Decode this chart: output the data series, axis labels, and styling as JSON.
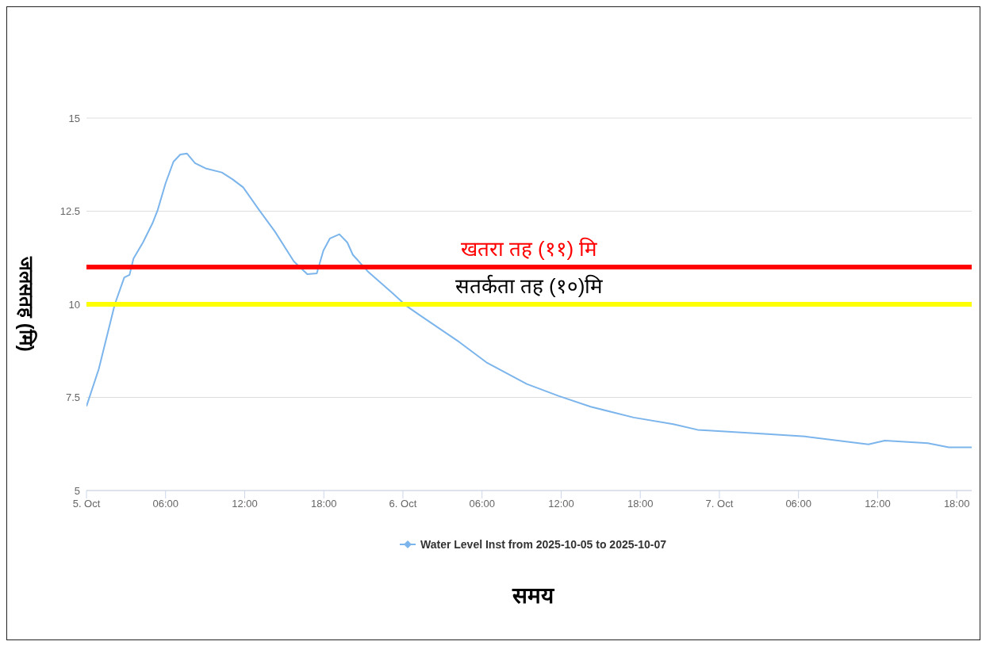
{
  "chart_data": {
    "type": "line",
    "xlabel": "समय",
    "ylabel": "जलसतह (मि)",
    "x": [
      "2025-10-05T00:00",
      "2025-10-05T00:56",
      "2025-10-05T02:09",
      "2025-10-05T02:52",
      "2025-10-05T03:16",
      "2025-10-05T03:34",
      "2025-10-05T04:17",
      "2025-10-05T05:00",
      "2025-10-05T05:24",
      "2025-10-05T06:00",
      "2025-10-05T06:36",
      "2025-10-05T07:07",
      "2025-10-05T07:37",
      "2025-10-05T08:14",
      "2025-10-05T09:02",
      "2025-10-05T10:16",
      "2025-10-05T11:04",
      "2025-10-05T11:53",
      "2025-10-05T13:06",
      "2025-10-05T14:18",
      "2025-10-05T15:44",
      "2025-10-05T16:45",
      "2025-10-05T17:28",
      "2025-10-05T17:58",
      "2025-10-05T18:28",
      "2025-10-05T19:11",
      "2025-10-05T19:47",
      "2025-10-05T20:12",
      "2025-10-05T21:24",
      "2025-10-05T23:14",
      "2025-10-06T00:15",
      "2025-10-06T01:16",
      "2025-10-06T04:18",
      "2025-10-06T06:20",
      "2025-10-06T09:24",
      "2025-10-06T11:48",
      "2025-10-06T14:14",
      "2025-10-06T17:30",
      "2025-10-06T20:30",
      "2025-10-06T22:21",
      "2025-10-06T23:10",
      "2025-10-07T03:24",
      "2025-10-07T06:30",
      "2025-10-07T11:18",
      "2025-10-07T12:33",
      "2025-10-07T15:48",
      "2025-10-07T17:24",
      "2025-10-07T19:08"
    ],
    "series": [
      {
        "name": "Water Level Inst from 2025-10-05 to 2025-10-07",
        "color": "#7cb5ec",
        "values": [
          7.26,
          8.26,
          10.0,
          10.72,
          10.79,
          11.23,
          11.66,
          12.17,
          12.53,
          13.25,
          13.83,
          14.02,
          14.05,
          13.79,
          13.65,
          13.54,
          13.36,
          13.14,
          12.53,
          11.95,
          11.15,
          10.81,
          10.83,
          11.44,
          11.77,
          11.88,
          11.66,
          11.33,
          10.86,
          10.29,
          9.96,
          9.71,
          8.98,
          8.44,
          7.86,
          7.54,
          7.25,
          6.96,
          6.78,
          6.63,
          6.61,
          6.52,
          6.45,
          6.24,
          6.34,
          6.27,
          6.16,
          6.16
        ]
      }
    ],
    "xlim": [
      "2025-10-05T00:00",
      "2025-10-07T19:08"
    ],
    "xticks": [
      {
        "value": "2025-10-05T00:00",
        "label": "5. Oct"
      },
      {
        "value": "2025-10-05T06:00",
        "label": "06:00"
      },
      {
        "value": "2025-10-05T12:00",
        "label": "12:00"
      },
      {
        "value": "2025-10-05T18:00",
        "label": "18:00"
      },
      {
        "value": "2025-10-06T00:00",
        "label": "6. Oct"
      },
      {
        "value": "2025-10-06T06:00",
        "label": "06:00"
      },
      {
        "value": "2025-10-06T12:00",
        "label": "12:00"
      },
      {
        "value": "2025-10-06T18:00",
        "label": "18:00"
      },
      {
        "value": "2025-10-07T00:00",
        "label": "7. Oct"
      },
      {
        "value": "2025-10-07T06:00",
        "label": "06:00"
      },
      {
        "value": "2025-10-07T12:00",
        "label": "12:00"
      },
      {
        "value": "2025-10-07T18:00",
        "label": "18:00"
      }
    ],
    "ylim": [
      5,
      15
    ],
    "yticks": [
      5,
      7.5,
      10,
      12.5,
      15
    ],
    "ref_lines": [
      {
        "axis": "y",
        "value": 11,
        "label": "खतरा तह (११) मि",
        "color": "#ff0000"
      },
      {
        "axis": "y",
        "value": 10,
        "label": "सतर्कता तह (१०)मि",
        "color": "#ffff00"
      }
    ],
    "grid": "y",
    "legend": "bottom",
    "marker": "none",
    "line_style": "solid"
  }
}
